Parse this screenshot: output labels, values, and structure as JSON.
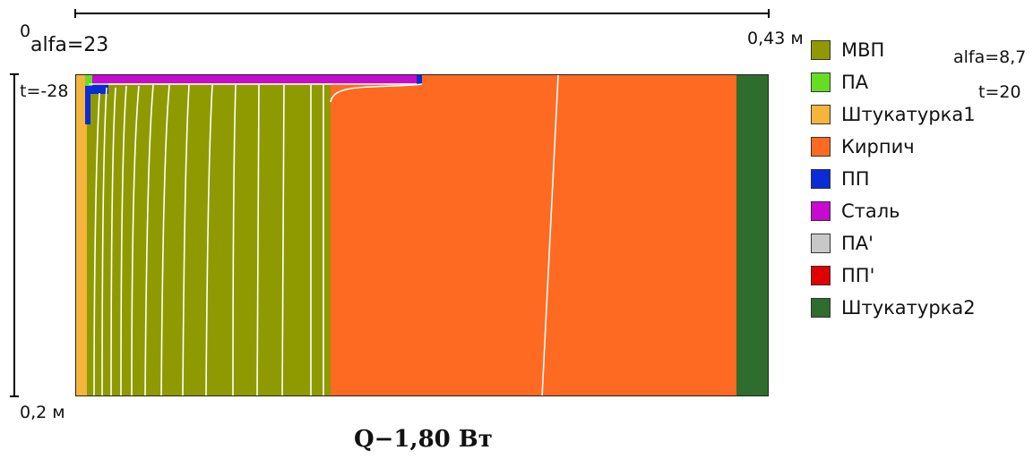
{
  "axis": {
    "top_origin": "0",
    "top_end": "0,43 м",
    "left_start": "t=-28",
    "left_end": "0,2 м"
  },
  "boundary": {
    "left_alfa": "alfa=23",
    "right_alfa": "alfa=8,7",
    "right_temp": "t=20"
  },
  "legend": [
    {
      "label": "МВП",
      "color": "#8f9a00"
    },
    {
      "label": "ПА",
      "color": "#66dd22"
    },
    {
      "label": "Штукатурка1",
      "color": "#f5b43c"
    },
    {
      "label": "Кирпич",
      "color": "#ff6a22"
    },
    {
      "label": "ПП",
      "color": "#0a2bd6"
    },
    {
      "label": "Сталь",
      "color": "#c60ad0"
    },
    {
      "label": "ПА'",
      "color": "#c8c8c8"
    },
    {
      "label": "ПП'",
      "color": "#e00000"
    },
    {
      "label": "Штукатурка2",
      "color": "#2e6d2e"
    }
  ],
  "result": "Q−1,80 Вт"
}
